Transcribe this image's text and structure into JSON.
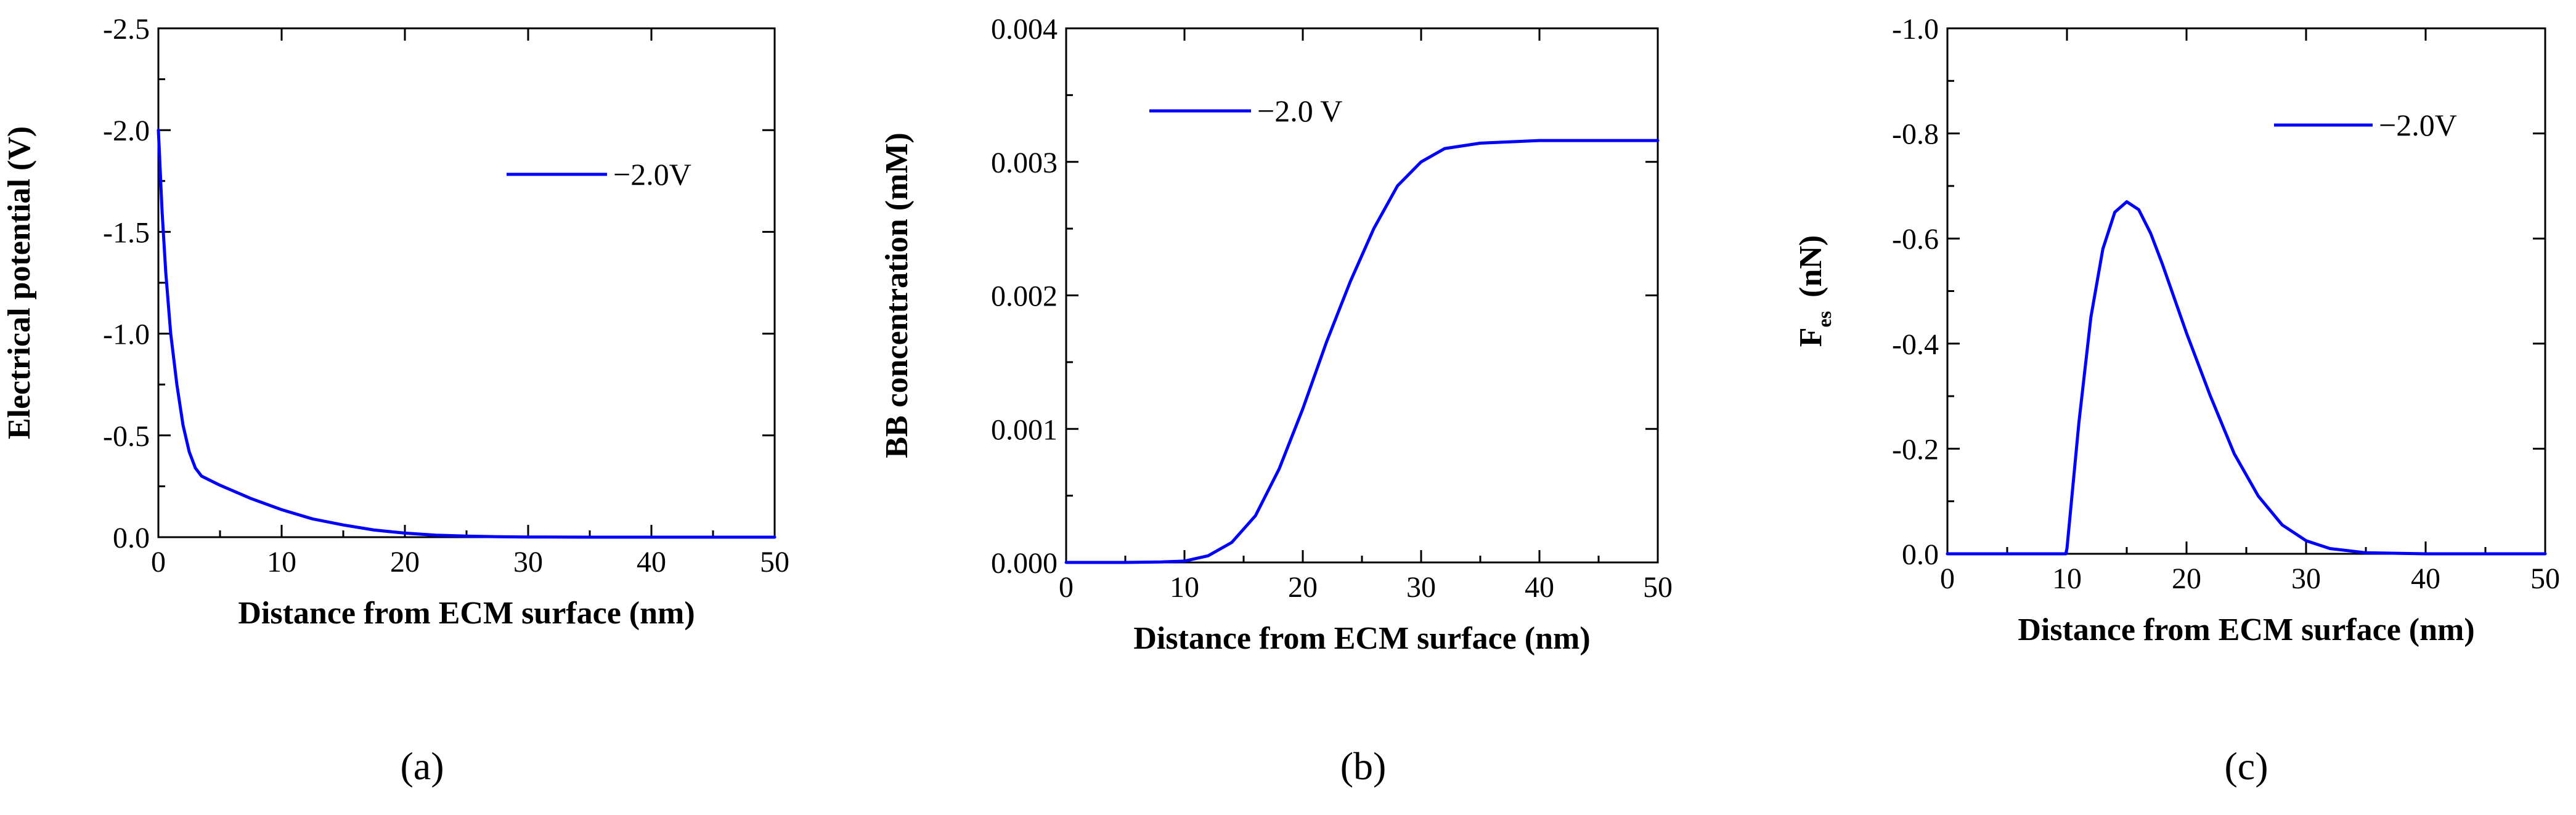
{
  "chart_data": [
    {
      "type": "line",
      "panel_label": "(a)",
      "xlabel": "Distance from ECM surface (nm)",
      "ylabel": "Electrical potential (V)",
      "ylabel_sub": "",
      "ylabel_suffix": "",
      "xlim": [
        0,
        50
      ],
      "ylim": [
        0.0,
        -2.5
      ],
      "xticks": [
        0,
        10,
        20,
        30,
        40,
        50
      ],
      "xtick_labels": [
        "0",
        "10",
        "20",
        "30",
        "40",
        "50"
      ],
      "yticks": [
        0,
        -0.5,
        -1.0,
        -1.5,
        -2.0,
        -2.5
      ],
      "ytick_labels": [
        "0.0",
        "-0.5",
        "-1.0",
        "-1.5",
        "-2.0",
        "-2.5"
      ],
      "legend_position": "top-right",
      "series": [
        {
          "name": "−2.0V",
          "color": "#0000ff",
          "x": [
            0,
            0.3,
            0.6,
            1.0,
            1.5,
            2.0,
            2.5,
            3.0,
            3.5,
            5,
            7.5,
            10,
            12.5,
            15,
            17.5,
            20,
            22.5,
            25,
            27.5,
            30,
            35,
            40,
            45,
            50
          ],
          "y": [
            -2.0,
            -1.6,
            -1.3,
            -1.0,
            -0.75,
            -0.55,
            -0.42,
            -0.34,
            -0.3,
            -0.255,
            -0.19,
            -0.135,
            -0.09,
            -0.06,
            -0.035,
            -0.02,
            -0.01,
            -0.005,
            -0.002,
            -0.001,
            0,
            0,
            0,
            0
          ]
        }
      ]
    },
    {
      "type": "line",
      "panel_label": "(b)",
      "xlabel": "Distance from ECM surface (nm)",
      "ylabel": "BB concentration (mM)",
      "ylabel_sub": "",
      "ylabel_suffix": "",
      "xlim": [
        0,
        50
      ],
      "ylim": [
        0.0,
        0.004
      ],
      "xticks": [
        0,
        10,
        20,
        30,
        40,
        50
      ],
      "xtick_labels": [
        "0",
        "10",
        "20",
        "30",
        "40",
        "50"
      ],
      "yticks": [
        0,
        0.001,
        0.002,
        0.003,
        0.004
      ],
      "ytick_labels": [
        "0.000",
        "0.001",
        "0.002",
        "0.003",
        "0.004"
      ],
      "legend_position": "top-left",
      "series": [
        {
          "name": "−2.0 V",
          "color": "#0000ff",
          "x": [
            0,
            5,
            8,
            10,
            12,
            14,
            16,
            18,
            20,
            22,
            24,
            26,
            28,
            30,
            32,
            35,
            40,
            45,
            50
          ],
          "y": [
            0,
            0,
            3e-06,
            1e-05,
            5e-05,
            0.00015,
            0.00035,
            0.0007,
            0.00115,
            0.00165,
            0.0021,
            0.0025,
            0.00282,
            0.003,
            0.0031,
            0.00314,
            0.00316,
            0.00316,
            0.00316
          ]
        }
      ]
    },
    {
      "type": "line",
      "panel_label": "(c)",
      "xlabel": "Distance from ECM surface (nm)",
      "ylabel": "F",
      "ylabel_sub": "es",
      "ylabel_suffix": "(nN)",
      "xlim": [
        0,
        50
      ],
      "ylim": [
        0.0,
        -1.0
      ],
      "xticks": [
        0,
        10,
        20,
        30,
        40,
        50
      ],
      "xtick_labels": [
        "0",
        "10",
        "20",
        "30",
        "40",
        "50"
      ],
      "yticks": [
        0,
        -0.2,
        -0.4,
        -0.6,
        -0.8,
        -1.0
      ],
      "ytick_labels": [
        "0.0",
        "-0.2",
        "-0.4",
        "-0.6",
        "-0.8",
        "-1.0"
      ],
      "legend_position": "top-right",
      "series": [
        {
          "name": "−2.0V",
          "color": "#0000ff",
          "x": [
            0,
            5,
            9.9,
            10,
            11,
            12,
            13,
            14,
            15,
            16,
            17,
            18,
            20,
            22,
            24,
            26,
            28,
            30,
            32,
            35,
            40,
            45,
            50
          ],
          "y": [
            0,
            0,
            0,
            -0.01,
            -0.25,
            -0.45,
            -0.58,
            -0.65,
            -0.67,
            -0.655,
            -0.61,
            -0.55,
            -0.42,
            -0.3,
            -0.19,
            -0.11,
            -0.055,
            -0.025,
            -0.01,
            -0.002,
            0,
            0,
            0
          ]
        }
      ]
    }
  ]
}
